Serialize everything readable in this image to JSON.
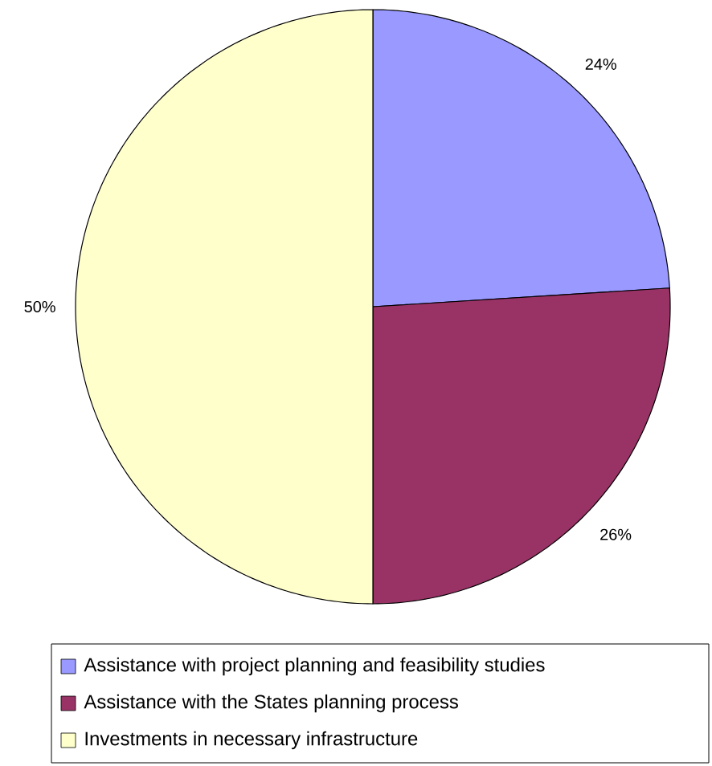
{
  "chart_data": {
    "type": "pie",
    "categories": [
      "Assistance with project planning and feasibility studies",
      "Assistance with the States planning process",
      "Investments in necessary infrastructure"
    ],
    "values": [
      24,
      26,
      50
    ],
    "colors": [
      "#9999ff",
      "#993366",
      "#ffffcc"
    ],
    "value_labels": [
      "24%",
      "26%",
      "50%"
    ],
    "legend": "bottom"
  }
}
